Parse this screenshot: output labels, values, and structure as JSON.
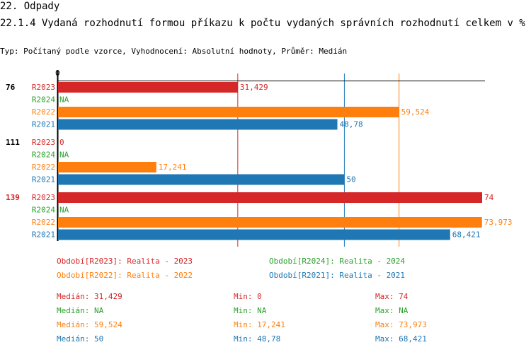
{
  "header": {
    "section": "22. Odpady",
    "title": "22.1.4 Vydaná rozhodnutí formou příkazu k počtu vydaných správních rozhodnutí celkem v %",
    "subtitle": "Typ: Počítaný podle vzorce, Vyhodnocení: Absolutní hodnoty, Průměr: Medián"
  },
  "colors": {
    "R2023": "#d62728",
    "R2024": "#2ca02c",
    "R2022": "#ff7f0e",
    "R2021": "#1f77b4"
  },
  "chart_data": {
    "type": "bar",
    "orientation": "horizontal",
    "xlim": [
      0,
      74.5
    ],
    "x_tick_labels": [
      "0"
    ],
    "groups": [
      {
        "label": "76",
        "highlight": false,
        "bars": [
          {
            "series": "R2023",
            "value": 31.429,
            "label": "31,429"
          },
          {
            "series": "R2024",
            "value": null,
            "label": "NA"
          },
          {
            "series": "R2022",
            "value": 59.524,
            "label": "59,524"
          },
          {
            "series": "R2021",
            "value": 48.78,
            "label": "48,78"
          }
        ]
      },
      {
        "label": "111",
        "highlight": false,
        "bars": [
          {
            "series": "R2023",
            "value": 0,
            "label": "0"
          },
          {
            "series": "R2024",
            "value": null,
            "label": "NA"
          },
          {
            "series": "R2022",
            "value": 17.241,
            "label": "17,241"
          },
          {
            "series": "R2021",
            "value": 50,
            "label": "50"
          }
        ]
      },
      {
        "label": "139",
        "highlight": true,
        "bars": [
          {
            "series": "R2023",
            "value": 74,
            "label": "74"
          },
          {
            "series": "R2024",
            "value": null,
            "label": "NA"
          },
          {
            "series": "R2022",
            "value": 73.973,
            "label": "73,973"
          },
          {
            "series": "R2021",
            "value": 68.421,
            "label": "68,421"
          }
        ]
      }
    ],
    "median_lines": [
      {
        "series": "R2023",
        "value": 31.429
      },
      {
        "series": "R2021",
        "value": 50
      },
      {
        "series": "R2022",
        "value": 59.524
      }
    ]
  },
  "legend": [
    {
      "series": "R2023",
      "text": "Období[R2023]: Realita - 2023"
    },
    {
      "series": "R2024",
      "text": "Období[R2024]: Realita - 2024"
    },
    {
      "series": "R2022",
      "text": "Období[R2022]: Realita - 2022"
    },
    {
      "series": "R2021",
      "text": "Období[R2021]: Realita - 2021"
    }
  ],
  "stats": [
    {
      "series": "R2023",
      "median": "Medián: 31,429",
      "min": "Min: 0",
      "max": "Max: 74"
    },
    {
      "series": "R2024",
      "median": "Medián: NA",
      "min": "Min: NA",
      "max": "Max: NA"
    },
    {
      "series": "R2022",
      "median": "Medián: 59,524",
      "min": "Min: 17,241",
      "max": "Max: 73,973"
    },
    {
      "series": "R2021",
      "median": "Medián: 50",
      "min": "Min: 48,78",
      "max": "Max: 68,421"
    }
  ]
}
